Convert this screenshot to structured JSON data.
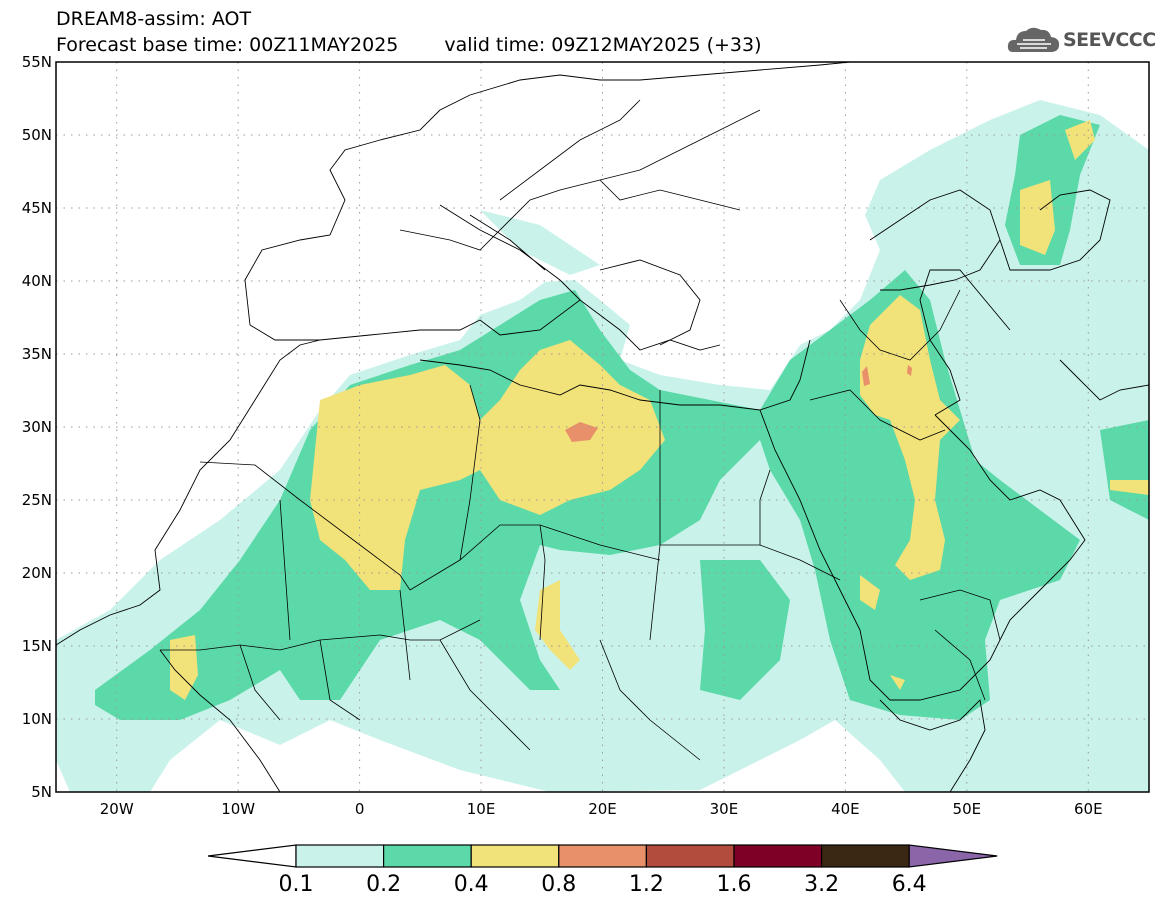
{
  "header": {
    "title_line1": "DREAM8-assim: AOT",
    "base_time": "Forecast base time: 00Z11MAY2025",
    "valid_time": "valid time: 09Z12MAY2025 (+33)"
  },
  "logo": {
    "text": "SEEVCCC",
    "icon": "cloud-icon"
  },
  "map": {
    "lon_range": [
      -25,
      65
    ],
    "lat_range": [
      5,
      55
    ],
    "lat_ticks": [
      {
        "value": 55,
        "label": "55N"
      },
      {
        "value": 50,
        "label": "50N"
      },
      {
        "value": 45,
        "label": "45N"
      },
      {
        "value": 40,
        "label": "40N"
      },
      {
        "value": 35,
        "label": "35N"
      },
      {
        "value": 30,
        "label": "30N"
      },
      {
        "value": 25,
        "label": "25N"
      },
      {
        "value": 20,
        "label": "20N"
      },
      {
        "value": 15,
        "label": "15N"
      },
      {
        "value": 10,
        "label": "10N"
      },
      {
        "value": 5,
        "label": "5N"
      }
    ],
    "lon_ticks": [
      {
        "value": -20,
        "label": "20W"
      },
      {
        "value": -10,
        "label": "10W"
      },
      {
        "value": 0,
        "label": "0"
      },
      {
        "value": 10,
        "label": "10E"
      },
      {
        "value": 20,
        "label": "20E"
      },
      {
        "value": 30,
        "label": "30E"
      },
      {
        "value": 40,
        "label": "40E"
      },
      {
        "value": 50,
        "label": "50E"
      },
      {
        "value": 60,
        "label": "60E"
      }
    ],
    "grid": "dotted"
  },
  "colorbar": {
    "levels": [
      "0.1",
      "0.2",
      "0.4",
      "0.8",
      "1.2",
      "1.6",
      "3.2",
      "6.4"
    ],
    "colors": [
      "#ffffff",
      "#c8f2ea",
      "#5cd9a8",
      "#f2e27a",
      "#e8906a",
      "#b24c3c",
      "#7e0026",
      "#3a2714",
      "#8a66a8"
    ]
  },
  "colors": {
    "aot_0_1": "#c8f2ea",
    "aot_0_2": "#5cd9a8",
    "aot_0_4": "#f2e27a",
    "aot_0_8": "#e8906a"
  }
}
